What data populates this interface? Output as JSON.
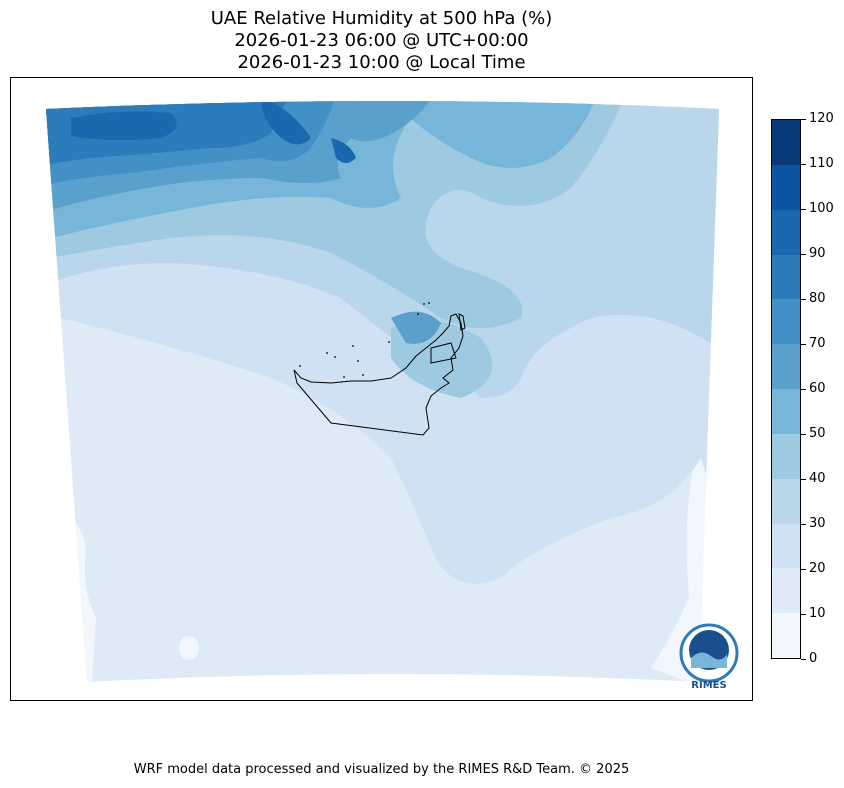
{
  "title": {
    "line1": "UAE Relative Humidity at 500 hPa (%)",
    "line2": "2026-01-23 06:00 @ UTC+00:00",
    "line3": "2026-01-23 10:00 @ Local Time"
  },
  "colorbar": {
    "ticks": [
      "0",
      "10",
      "20",
      "30",
      "40",
      "50",
      "60",
      "70",
      "80",
      "90",
      "100",
      "110",
      "120"
    ],
    "colors": [
      "#f1f7fd",
      "#deebf7",
      "#cfe1f2",
      "#b9d6ea",
      "#9dcae1",
      "#78b6d9",
      "#5aa0cd",
      "#4290c5",
      "#2c7bbb",
      "#1a68ae",
      "#0b55a0",
      "#083a7a"
    ]
  },
  "logo": {
    "label": "RIMES"
  },
  "footer": "WRF model data processed and visualized by the RIMES R&D Team. © 2025"
}
